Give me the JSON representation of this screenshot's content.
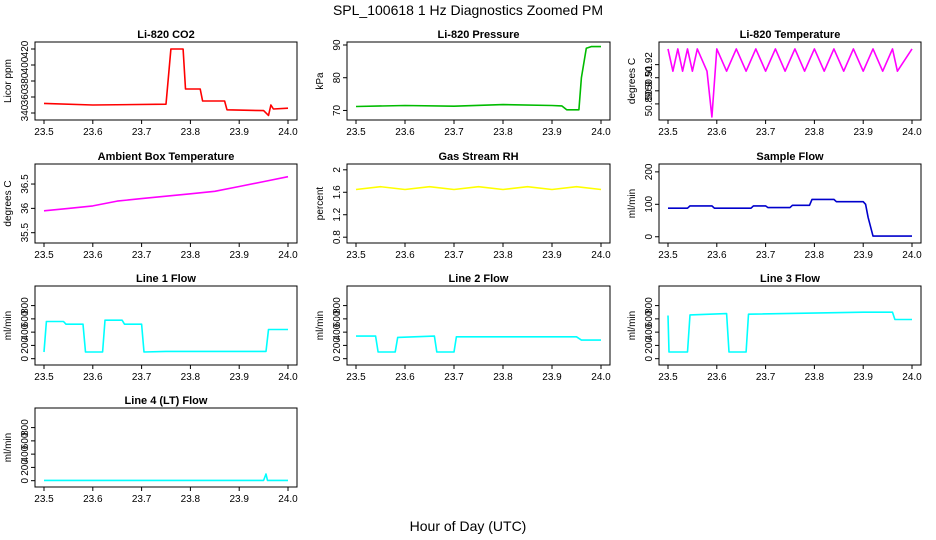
{
  "figure": {
    "title": "SPL_100618  1 Hz Diagnostics Zoomed PM",
    "xlabel": "Hour of Day (UTC)"
  },
  "chart_data": [
    {
      "type": "line",
      "title": "Li-820 CO2",
      "ylabel": "Licor ppm",
      "color": "#ff0000",
      "xlim": [
        23.5,
        24.0
      ],
      "ylim": [
        335,
        425
      ],
      "xticks": [
        "23.5",
        "23.6",
        "23.7",
        "23.8",
        "23.9",
        "24.0"
      ],
      "yticks": [
        340,
        360,
        380,
        400,
        420
      ],
      "series": [
        {
          "x": [
            23.5,
            23.6,
            23.75,
            23.76,
            23.785,
            23.79,
            23.82,
            23.825,
            23.87,
            23.875,
            23.95,
            23.96,
            23.965,
            23.97,
            24.0
          ],
          "y": [
            352,
            350,
            351,
            420,
            420,
            370,
            370,
            355,
            355,
            344,
            343,
            337,
            350,
            345,
            346
          ]
        }
      ]
    },
    {
      "type": "line",
      "title": "Li-820 Pressure",
      "ylabel": "kPa",
      "color": "#00bb00",
      "xlim": [
        23.5,
        24.0
      ],
      "ylim": [
        68,
        90
      ],
      "xticks": [
        "23.5",
        "23.6",
        "23.7",
        "23.8",
        "23.9",
        "24.0"
      ],
      "yticks": [
        70,
        80,
        90
      ],
      "series": [
        {
          "x": [
            23.5,
            23.6,
            23.7,
            23.8,
            23.9,
            23.92,
            23.93,
            23.955,
            23.96,
            23.97,
            23.98,
            24.0
          ],
          "y": [
            71.2,
            71.5,
            71.3,
            71.8,
            71.5,
            71.4,
            70.2,
            70.2,
            80,
            89,
            89.5,
            89.5
          ]
        }
      ]
    },
    {
      "type": "line",
      "title": "Li-820 Temperature",
      "ylabel": "degrees C",
      "color": "#ff00ff",
      "xlim": [
        23.5,
        24.0
      ],
      "ylim": [
        50.88,
        50.935
      ],
      "xticks": [
        "23.5",
        "23.6",
        "23.7",
        "23.8",
        "23.9",
        "24.0"
      ],
      "yticks": [
        50.89,
        50.9,
        50.91,
        50.92
      ],
      "series": [
        {
          "x": [
            23.5,
            23.51,
            23.52,
            23.53,
            23.54,
            23.55,
            23.56,
            23.58,
            23.59,
            23.6,
            23.62,
            23.64,
            23.66,
            23.68,
            23.7,
            23.72,
            23.74,
            23.76,
            23.78,
            23.8,
            23.82,
            23.84,
            23.86,
            23.88,
            23.9,
            23.92,
            23.94,
            23.96,
            23.97,
            24.0
          ],
          "y": [
            50.932,
            50.915,
            50.932,
            50.915,
            50.932,
            50.915,
            50.932,
            50.915,
            50.88,
            50.932,
            50.915,
            50.932,
            50.915,
            50.932,
            50.915,
            50.932,
            50.915,
            50.932,
            50.915,
            50.932,
            50.915,
            50.932,
            50.915,
            50.932,
            50.915,
            50.932,
            50.915,
            50.932,
            50.915,
            50.932
          ]
        }
      ]
    },
    {
      "type": "line",
      "title": "Ambient Box Temperature",
      "ylabel": "degrees C",
      "color": "#ff00ff",
      "xlim": [
        23.5,
        24.0
      ],
      "ylim": [
        35.35,
        36.85
      ],
      "xticks": [
        "23.5",
        "23.6",
        "23.7",
        "23.8",
        "23.9",
        "24.0"
      ],
      "yticks": [
        35.5,
        36.0,
        36.5
      ],
      "series": [
        {
          "x": [
            23.5,
            23.55,
            23.6,
            23.65,
            23.7,
            23.75,
            23.8,
            23.85,
            23.9,
            23.95,
            24.0
          ],
          "y": [
            35.95,
            36.0,
            36.05,
            36.15,
            36.2,
            36.25,
            36.3,
            36.35,
            36.45,
            36.55,
            36.65
          ]
        }
      ]
    },
    {
      "type": "line",
      "title": "Gas Stream RH",
      "ylabel": "percent",
      "color": "#ffff00",
      "xlim": [
        23.5,
        24.0
      ],
      "ylim": [
        0.75,
        2.05
      ],
      "xticks": [
        "23.5",
        "23.6",
        "23.7",
        "23.8",
        "23.9",
        "24.0"
      ],
      "yticks": [
        0.8,
        1.2,
        1.6,
        2.0
      ],
      "series": [
        {
          "x": [
            23.5,
            23.55,
            23.6,
            23.65,
            23.7,
            23.75,
            23.8,
            23.85,
            23.9,
            23.95,
            24.0
          ],
          "y": [
            1.65,
            1.7,
            1.65,
            1.7,
            1.65,
            1.7,
            1.65,
            1.7,
            1.65,
            1.7,
            1.65
          ]
        }
      ]
    },
    {
      "type": "line",
      "title": "Sample Flow",
      "ylabel": "ml/min",
      "color": "#0000cc",
      "xlim": [
        23.5,
        24.0
      ],
      "ylim": [
        -10,
        215
      ],
      "xticks": [
        "23.5",
        "23.6",
        "23.7",
        "23.8",
        "23.9",
        "24.0"
      ],
      "yticks": [
        0,
        100,
        200
      ],
      "series": [
        {
          "x": [
            23.5,
            23.54,
            23.545,
            23.59,
            23.595,
            23.67,
            23.675,
            23.7,
            23.705,
            23.75,
            23.755,
            23.79,
            23.795,
            23.84,
            23.845,
            23.9,
            23.905,
            23.91,
            23.92,
            24.0
          ],
          "y": [
            88,
            88,
            95,
            95,
            88,
            88,
            95,
            95,
            90,
            90,
            97,
            97,
            115,
            115,
            108,
            108,
            100,
            60,
            2,
            2
          ]
        }
      ]
    },
    {
      "type": "line",
      "title": "Line 1 Flow",
      "ylabel": "ml/min",
      "color": "#00ffff",
      "xlim": [
        23.5,
        24.0
      ],
      "ylim": [
        -50,
        1050
      ],
      "xticks": [
        "23.5",
        "23.6",
        "23.7",
        "23.8",
        "23.9",
        "24.0"
      ],
      "yticks": [
        0,
        200,
        400,
        600,
        800
      ],
      "series": [
        {
          "x": [
            23.5,
            23.505,
            23.54,
            23.545,
            23.58,
            23.585,
            23.62,
            23.625,
            23.66,
            23.665,
            23.7,
            23.705,
            23.75,
            23.955,
            23.96,
            24.0
          ],
          "y": [
            100,
            560,
            560,
            520,
            520,
            100,
            100,
            580,
            580,
            520,
            520,
            100,
            110,
            110,
            440,
            440
          ]
        }
      ]
    },
    {
      "type": "line",
      "title": "Line 2 Flow",
      "ylabel": "ml/min",
      "color": "#00ffff",
      "xlim": [
        23.5,
        24.0
      ],
      "ylim": [
        -50,
        1050
      ],
      "xticks": [
        "23.5",
        "23.6",
        "23.7",
        "23.8",
        "23.9",
        "24.0"
      ],
      "yticks": [
        0,
        200,
        400,
        600,
        800
      ],
      "series": [
        {
          "x": [
            23.5,
            23.54,
            23.545,
            23.58,
            23.585,
            23.66,
            23.665,
            23.7,
            23.705,
            23.95,
            23.96,
            24.0
          ],
          "y": [
            340,
            340,
            100,
            100,
            320,
            340,
            100,
            100,
            330,
            330,
            280,
            280
          ]
        }
      ]
    },
    {
      "type": "line",
      "title": "Line 3 Flow",
      "ylabel": "ml/min",
      "color": "#00ffff",
      "xlim": [
        23.5,
        24.0
      ],
      "ylim": [
        -50,
        1050
      ],
      "xticks": [
        "23.5",
        "23.6",
        "23.7",
        "23.8",
        "23.9",
        "24.0"
      ],
      "yticks": [
        0,
        200,
        400,
        600,
        800
      ],
      "series": [
        {
          "x": [
            23.5,
            23.502,
            23.505,
            23.54,
            23.545,
            23.62,
            23.625,
            23.66,
            23.665,
            23.9,
            23.96,
            23.965,
            24.0
          ],
          "y": [
            650,
            100,
            100,
            100,
            660,
            680,
            100,
            100,
            670,
            700,
            700,
            590,
            590
          ]
        }
      ]
    },
    {
      "type": "line",
      "title": "Line 4 (LT) Flow",
      "ylabel": "ml/min",
      "color": "#00ffff",
      "xlim": [
        23.5,
        24.0
      ],
      "ylim": [
        -50,
        1050
      ],
      "xticks": [
        "23.5",
        "23.6",
        "23.7",
        "23.8",
        "23.9",
        "24.0"
      ],
      "yticks": [
        0,
        200,
        400,
        600,
        800
      ],
      "series": [
        {
          "x": [
            23.5,
            23.95,
            23.955,
            23.958,
            23.96,
            24.0
          ],
          "y": [
            5,
            5,
            100,
            5,
            5,
            5
          ]
        }
      ]
    }
  ]
}
